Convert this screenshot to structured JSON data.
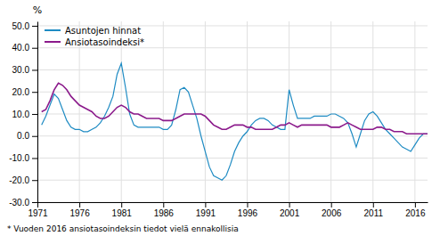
{
  "chart_data": {
    "type": "line",
    "y_label": "%",
    "footnote": "* Vuoden 2016 ansiotasoindeksin tiedot vielä ennakollisia",
    "x": [
      1971.5,
      1972.0,
      1972.5,
      1973.0,
      1973.5,
      1974.0,
      1974.5,
      1975.0,
      1975.5,
      1976.0,
      1976.5,
      1977.0,
      1977.5,
      1978.0,
      1978.5,
      1979.0,
      1979.5,
      1980.0,
      1980.5,
      1981.0,
      1981.5,
      1982.0,
      1982.5,
      1983.0,
      1983.5,
      1984.0,
      1984.5,
      1985.0,
      1985.5,
      1986.0,
      1986.5,
      1987.0,
      1987.5,
      1988.0,
      1988.5,
      1989.0,
      1989.5,
      1990.0,
      1990.5,
      1991.0,
      1991.5,
      1992.0,
      1992.5,
      1993.0,
      1993.5,
      1994.0,
      1994.5,
      1995.0,
      1995.5,
      1996.0,
      1996.5,
      1997.0,
      1997.5,
      1998.0,
      1998.5,
      1999.0,
      1999.5,
      2000.0,
      2000.5,
      2001.0,
      2001.5,
      2002.0,
      2002.5,
      2003.0,
      2003.5,
      2004.0,
      2004.5,
      2005.0,
      2005.5,
      2006.0,
      2006.5,
      2007.0,
      2007.5,
      2008.0,
      2008.5,
      2009.0,
      2009.5,
      2010.0,
      2010.5,
      2011.0,
      2011.5,
      2012.0,
      2012.5,
      2013.0,
      2013.5,
      2014.0,
      2014.5,
      2015.0,
      2015.5,
      2016.0,
      2016.5,
      2017.0,
      2017.5
    ],
    "series": [
      {
        "name": "Asuntojen hinnat",
        "color": "#1e8bc3",
        "values": [
          5,
          9,
          14,
          19,
          17,
          12,
          7,
          4,
          3,
          3,
          2,
          2,
          3,
          4,
          6,
          9,
          13,
          18,
          28,
          33,
          22,
          10,
          5,
          4,
          4,
          4,
          4,
          4,
          4,
          3,
          3,
          5,
          12,
          21,
          22,
          20,
          14,
          8,
          0,
          -7,
          -14,
          -18,
          -19,
          -20,
          -18,
          -13,
          -7,
          -3,
          0,
          2,
          5,
          7,
          8,
          8,
          7,
          5,
          4,
          3,
          3,
          21,
          14,
          8,
          8,
          8,
          8,
          9,
          9,
          9,
          9,
          10,
          10,
          9,
          8,
          6,
          1,
          -5,
          1,
          7,
          10,
          11,
          9,
          6,
          3,
          1,
          -1,
          -3,
          -5,
          -6,
          -7,
          -4,
          -1,
          1,
          1
        ]
      },
      {
        "name": "Ansiotasoindeksi*",
        "color": "#8b1a8b",
        "values": [
          11,
          12,
          16,
          21,
          24,
          23,
          21,
          18,
          16,
          14,
          13,
          12,
          11,
          9,
          8,
          8,
          9,
          11,
          13,
          14,
          13,
          11,
          10,
          10,
          9,
          8,
          8,
          8,
          8,
          7,
          7,
          7,
          8,
          9,
          10,
          10,
          10,
          10,
          10,
          9,
          7,
          5,
          4,
          3,
          3,
          4,
          5,
          5,
          5,
          4,
          4,
          3,
          3,
          3,
          3,
          3,
          4,
          5,
          5,
          6,
          5,
          4,
          5,
          5,
          5,
          5,
          5,
          5,
          5,
          4,
          4,
          4,
          5,
          6,
          5,
          4,
          3,
          3,
          3,
          3,
          4,
          4,
          3,
          3,
          2,
          2,
          2,
          1,
          1,
          1,
          1,
          1,
          1
        ]
      }
    ],
    "xlim": [
      1971,
      2017.5
    ],
    "xticks": [
      1971,
      1976,
      1981,
      1986,
      1991,
      1996,
      2001,
      2006,
      2011,
      2016
    ],
    "ylim": [
      -30,
      52
    ],
    "yticks": [
      {
        "value": -30,
        "label": "-30.0"
      },
      {
        "value": -20,
        "label": "-20.0"
      },
      {
        "value": -10,
        "label": "-10.0"
      },
      {
        "value": 0,
        "label": "0.0"
      },
      {
        "value": 10,
        "label": "10.0"
      },
      {
        "value": 20,
        "label": "20.0"
      },
      {
        "value": 30,
        "label": "30.0"
      },
      {
        "value": 40,
        "label": "40.0"
      },
      {
        "value": 50,
        "label": "50.0"
      }
    ],
    "grid": true,
    "legend": "upper left"
  }
}
